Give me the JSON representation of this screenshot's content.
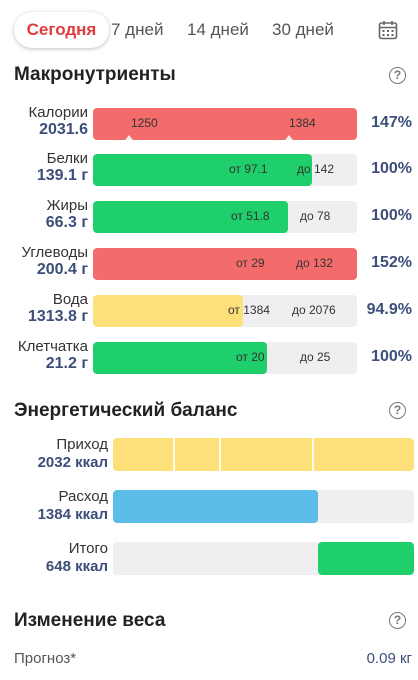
{
  "tabs": {
    "today": "Сегодня",
    "d7": "7 дней",
    "d14": "14 дней",
    "d30": "30 дней"
  },
  "colors": {
    "red": "#f46b6b",
    "green": "#1ecf6c",
    "yellow": "#fde07a",
    "blue": "#5bbde8",
    "track": "#efeff1",
    "value_text": "#3d4e7a"
  },
  "macros": {
    "title": "Макронутриенты",
    "items": [
      {
        "name": "Калории",
        "value": "2031.6",
        "fill": 1.0,
        "color": "#f46b6b",
        "from": "1250",
        "to": "1384",
        "pct": "147%"
      },
      {
        "name": "Белки",
        "value": "139.1 г",
        "fill": 0.83,
        "color": "#1ecf6c",
        "from": "от 97.1",
        "to": "до 142",
        "pct": "100%"
      },
      {
        "name": "Жиры",
        "value": "66.3 г",
        "fill": 0.74,
        "color": "#1ecf6c",
        "from": "от 51.8",
        "to": "до 78",
        "pct": "100%"
      },
      {
        "name": "Углеводы",
        "value": "200.4 г",
        "fill": 1.0,
        "color": "#f46b6b",
        "from": "от 29",
        "to": "до 132",
        "pct": "152%"
      },
      {
        "name": "Вода",
        "value": "1313.8 г",
        "fill": 0.57,
        "color": "#fde07a",
        "from": "от 1384",
        "to": "до 2076",
        "pct": "94.9%"
      },
      {
        "name": "Клетчатка",
        "value": "21.2 г",
        "fill": 0.66,
        "color": "#1ecf6c",
        "from": "от 20",
        "to": "до 25",
        "pct": "100%"
      }
    ]
  },
  "energy": {
    "title": "Энергетический баланс",
    "items": [
      {
        "name": "Приход",
        "value": "2032 ккал",
        "color": "#fde07a",
        "fill": 1.0,
        "align": "left"
      },
      {
        "name": "Расход",
        "value": "1384 ккал",
        "color": "#5bbde8",
        "fill": 0.68,
        "align": "left"
      },
      {
        "name": "Итого",
        "value": "648 ккал",
        "color": "#1ecf6c",
        "fill": 0.32,
        "align": "right"
      }
    ]
  },
  "weight": {
    "title": "Изменение веса",
    "forecast_label": "Прогноз*",
    "forecast_value": "0.09 кг"
  }
}
